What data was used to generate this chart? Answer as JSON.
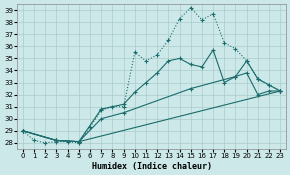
{
  "xlabel": "Humidex (Indice chaleur)",
  "bg_color": "#cce8e8",
  "grid_color": "#aacccc",
  "line_color": "#1a6b6b",
  "xlim": [
    -0.5,
    23.5
  ],
  "ylim": [
    27.5,
    39.5
  ],
  "xticks": [
    0,
    1,
    2,
    3,
    4,
    5,
    6,
    7,
    8,
    9,
    10,
    11,
    12,
    13,
    14,
    15,
    16,
    17,
    18,
    19,
    20,
    21,
    22,
    23
  ],
  "yticks": [
    28,
    29,
    30,
    31,
    32,
    33,
    34,
    35,
    36,
    37,
    38,
    39
  ],
  "lines": [
    {
      "x": [
        0,
        1,
        2,
        3,
        4,
        5,
        6,
        7,
        8,
        9,
        10,
        11,
        12,
        13,
        14,
        15,
        16,
        17,
        18,
        19,
        20,
        21,
        22,
        23
      ],
      "y": [
        29,
        28.2,
        28,
        28.1,
        28.1,
        28,
        29.3,
        30.7,
        31.0,
        31.0,
        35.5,
        34.8,
        35.3,
        36.5,
        38.3,
        39.2,
        38.2,
        38.7,
        36.3,
        35.8,
        34.8,
        33.3,
        32.8,
        32.3
      ],
      "dotted": true
    },
    {
      "x": [
        0,
        3,
        5,
        7,
        9,
        10,
        11,
        12,
        13,
        14,
        15,
        16,
        17,
        18,
        19,
        20,
        21,
        22,
        23
      ],
      "y": [
        29,
        28.2,
        28.1,
        30.8,
        31.2,
        32.2,
        33.0,
        33.8,
        34.8,
        35.0,
        34.5,
        34.3,
        35.7,
        33.0,
        33.5,
        34.8,
        33.3,
        32.8,
        32.3
      ],
      "dotted": false
    },
    {
      "x": [
        0,
        3,
        5,
        7,
        9,
        15,
        19,
        20,
        21,
        22,
        23
      ],
      "y": [
        29,
        28.2,
        28.1,
        30.0,
        30.5,
        32.5,
        33.5,
        33.8,
        32.0,
        32.3,
        32.3
      ],
      "dotted": false
    },
    {
      "x": [
        0,
        3,
        5,
        23
      ],
      "y": [
        29,
        28.2,
        28.1,
        32.3
      ],
      "dotted": false
    }
  ]
}
